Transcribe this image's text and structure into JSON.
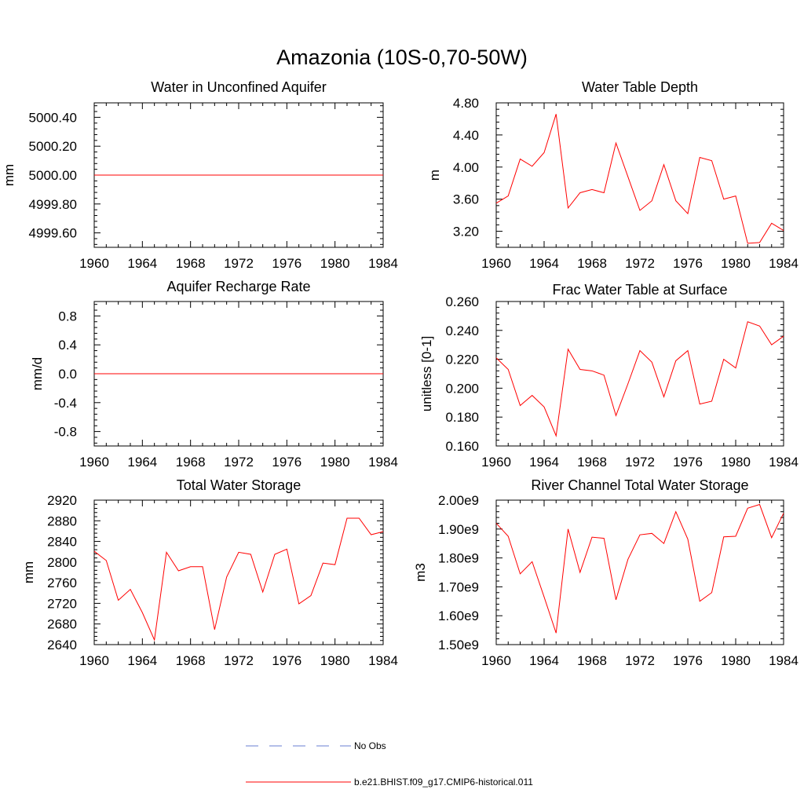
{
  "title": "Amazonia (10S-0,70-50W)",
  "colors": {
    "model_line": "#ff0000",
    "obs_line": "#6a7fd0",
    "axis": "#000000"
  },
  "legend": {
    "obs": {
      "label": "No Obs",
      "style": "dashed"
    },
    "model": {
      "label": "b.e21.BHIST.f09_g17.CMIP6-historical.011",
      "style": "solid"
    }
  },
  "chart_data": [
    {
      "type": "line",
      "title": "Water in Unconfined Aquifer",
      "ylabel": "mm",
      "xlim": [
        1960,
        1984
      ],
      "ylim": [
        4999.5,
        5000.5
      ],
      "yticks": [
        4999.6,
        4999.8,
        5000.0,
        5000.2,
        5000.4
      ],
      "ytick_labels": [
        "4999.60",
        "4999.80",
        "5000.00",
        "5000.20",
        "5000.40"
      ],
      "xticks": [
        1960,
        1964,
        1968,
        1972,
        1976,
        1980,
        1984
      ],
      "x": [
        1960,
        1961,
        1962,
        1963,
        1964,
        1965,
        1966,
        1967,
        1968,
        1969,
        1970,
        1971,
        1972,
        1973,
        1974,
        1975,
        1976,
        1977,
        1978,
        1979,
        1980,
        1981,
        1982,
        1983,
        1984
      ],
      "series": [
        {
          "values": [
            5000,
            5000,
            5000,
            5000,
            5000,
            5000,
            5000,
            5000,
            5000,
            5000,
            5000,
            5000,
            5000,
            5000,
            5000,
            5000,
            5000,
            5000,
            5000,
            5000,
            5000,
            5000,
            5000,
            5000,
            5000
          ]
        }
      ]
    },
    {
      "type": "line",
      "title": "Water Table Depth",
      "ylabel": "m",
      "xlim": [
        1960,
        1984
      ],
      "ylim": [
        3.0,
        4.8
      ],
      "yticks": [
        3.2,
        3.6,
        4.0,
        4.4,
        4.8
      ],
      "ytick_labels": [
        "3.20",
        "3.60",
        "4.00",
        "4.40",
        "4.80"
      ],
      "xticks": [
        1960,
        1964,
        1968,
        1972,
        1976,
        1980,
        1984
      ],
      "x": [
        1960,
        1961,
        1962,
        1963,
        1964,
        1965,
        1966,
        1967,
        1968,
        1969,
        1970,
        1971,
        1972,
        1973,
        1974,
        1975,
        1976,
        1977,
        1978,
        1979,
        1980,
        1981,
        1982,
        1983,
        1984
      ],
      "series": [
        {
          "values": [
            3.55,
            3.64,
            4.1,
            4.01,
            4.18,
            4.66,
            3.49,
            3.68,
            3.72,
            3.68,
            4.3,
            3.88,
            3.46,
            3.58,
            4.03,
            3.58,
            3.42,
            4.12,
            4.08,
            3.6,
            3.64,
            3.05,
            3.06,
            3.3,
            3.21
          ]
        }
      ]
    },
    {
      "type": "line",
      "title": "Aquifer Recharge Rate",
      "ylabel": "mm/d",
      "xlim": [
        1960,
        1984
      ],
      "ylim": [
        -1.0,
        1.0
      ],
      "yticks": [
        -0.8,
        -0.4,
        0.0,
        0.4,
        0.8
      ],
      "ytick_labels": [
        "-0.8",
        "-0.4",
        "0.0",
        "0.4",
        "0.8"
      ],
      "xticks": [
        1960,
        1964,
        1968,
        1972,
        1976,
        1980,
        1984
      ],
      "x": [
        1960,
        1961,
        1962,
        1963,
        1964,
        1965,
        1966,
        1967,
        1968,
        1969,
        1970,
        1971,
        1972,
        1973,
        1974,
        1975,
        1976,
        1977,
        1978,
        1979,
        1980,
        1981,
        1982,
        1983,
        1984
      ],
      "series": [
        {
          "values": [
            0,
            0,
            0,
            0,
            0,
            0,
            0,
            0,
            0,
            0,
            0,
            0,
            0,
            0,
            0,
            0,
            0,
            0,
            0,
            0,
            0,
            0,
            0,
            0,
            0
          ]
        }
      ]
    },
    {
      "type": "line",
      "title": "Frac Water Table at Surface",
      "ylabel": "unitless [0-1]",
      "xlim": [
        1960,
        1984
      ],
      "ylim": [
        0.16,
        0.26
      ],
      "yticks": [
        0.16,
        0.18,
        0.2,
        0.22,
        0.24,
        0.26
      ],
      "ytick_labels": [
        "0.160",
        "0.180",
        "0.200",
        "0.220",
        "0.240",
        "0.260"
      ],
      "xticks": [
        1960,
        1964,
        1968,
        1972,
        1976,
        1980,
        1984
      ],
      "x": [
        1960,
        1961,
        1962,
        1963,
        1964,
        1965,
        1966,
        1967,
        1968,
        1969,
        1970,
        1971,
        1972,
        1973,
        1974,
        1975,
        1976,
        1977,
        1978,
        1979,
        1980,
        1981,
        1982,
        1983,
        1984
      ],
      "series": [
        {
          "values": [
            0.221,
            0.213,
            0.188,
            0.195,
            0.187,
            0.167,
            0.227,
            0.213,
            0.212,
            0.209,
            0.181,
            0.203,
            0.226,
            0.218,
            0.194,
            0.219,
            0.226,
            0.189,
            0.191,
            0.22,
            0.214,
            0.246,
            0.243,
            0.23,
            0.236
          ]
        }
      ]
    },
    {
      "type": "line",
      "title": "Total Water Storage",
      "ylabel": "mm",
      "xlim": [
        1960,
        1984
      ],
      "ylim": [
        2640,
        2920
      ],
      "yticks": [
        2640,
        2680,
        2720,
        2760,
        2800,
        2840,
        2880,
        2920
      ],
      "ytick_labels": [
        "2640",
        "2680",
        "2720",
        "2760",
        "2800",
        "2840",
        "2880",
        "2920"
      ],
      "xticks": [
        1960,
        1964,
        1968,
        1972,
        1976,
        1980,
        1984
      ],
      "x": [
        1960,
        1961,
        1962,
        1963,
        1964,
        1965,
        1966,
        1967,
        1968,
        1969,
        1970,
        1971,
        1972,
        1973,
        1974,
        1975,
        1976,
        1977,
        1978,
        1979,
        1980,
        1981,
        1982,
        1983,
        1984
      ],
      "series": [
        {
          "values": [
            2821,
            2803,
            2726,
            2747,
            2702,
            2649,
            2819,
            2783,
            2791,
            2791,
            2669,
            2771,
            2819,
            2815,
            2742,
            2815,
            2825,
            2719,
            2735,
            2798,
            2795,
            2885,
            2885,
            2853,
            2859
          ]
        }
      ]
    },
    {
      "type": "line",
      "title": "River Channel Total Water Storage",
      "ylabel": "m3",
      "xlim": [
        1960,
        1984
      ],
      "ylim": [
        1500000000.0,
        2000000000.0
      ],
      "yticks": [
        1500000000.0,
        1600000000.0,
        1700000000.0,
        1800000000.0,
        1900000000.0,
        2000000000.0
      ],
      "ytick_labels": [
        "1.50e9",
        "1.60e9",
        "1.70e9",
        "1.80e9",
        "1.90e9",
        "2.00e9"
      ],
      "xticks": [
        1960,
        1964,
        1968,
        1972,
        1976,
        1980,
        1984
      ],
      "x": [
        1960,
        1961,
        1962,
        1963,
        1964,
        1965,
        1966,
        1967,
        1968,
        1969,
        1970,
        1971,
        1972,
        1973,
        1974,
        1975,
        1976,
        1977,
        1978,
        1979,
        1980,
        1981,
        1982,
        1983,
        1984
      ],
      "series": [
        {
          "values": [
            1920000000.0,
            1875000000.0,
            1745000000.0,
            1787000000.0,
            1665000000.0,
            1540000000.0,
            1900000000.0,
            1750000000.0,
            1872000000.0,
            1868000000.0,
            1655000000.0,
            1795000000.0,
            1880000000.0,
            1885000000.0,
            1850000000.0,
            1960000000.0,
            1865000000.0,
            1650000000.0,
            1680000000.0,
            1873000000.0,
            1875000000.0,
            1972000000.0,
            1985000000.0,
            1870000000.0,
            1955000000.0
          ]
        }
      ]
    }
  ]
}
